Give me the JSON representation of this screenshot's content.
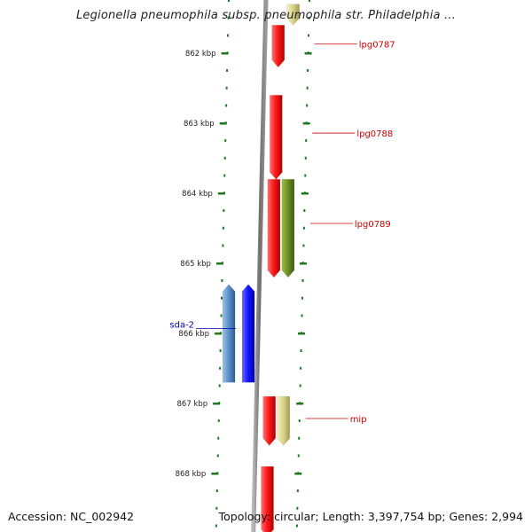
{
  "title": "Legionella pneumophila subsp. pneumophila str. Philadelphia ...",
  "footer": {
    "accession": "Accession: NC_002942",
    "info": "Topology: circular; Length: 3,397,754 bp; Genes: 2,994"
  },
  "colors": {
    "backbone": "#7a7a7a",
    "tick": "#1f7a1f",
    "label_red": "#cc0000",
    "label_blue": "#0000aa",
    "gene_red": "#ff1a1a",
    "gene_olive": "#6b8e23",
    "gene_khaki": "#d8d48a",
    "gene_steelblue": "#5b8fc7",
    "gene_blue": "#1414ff"
  },
  "scale": {
    "unit": "kbp",
    "ticks": [
      {
        "value": 862,
        "label": "862 kbp"
      },
      {
        "value": 863,
        "label": "863 kbp"
      },
      {
        "value": 864,
        "label": "864 kbp"
      },
      {
        "value": 865,
        "label": "865 kbp"
      },
      {
        "value": 866,
        "label": "866 kbp"
      },
      {
        "value": 867,
        "label": "867 kbp"
      },
      {
        "value": 868,
        "label": "868 kbp"
      }
    ]
  },
  "genes": [
    {
      "name": "",
      "strand": "+",
      "start": 861.3,
      "end": 861.6,
      "color": "gene_khaki"
    },
    {
      "name": "lpg0787",
      "strand": "+",
      "start": 861.6,
      "end": 862.2,
      "color": "gene_red"
    },
    {
      "name": "lpg0788",
      "strand": "+",
      "start": 862.6,
      "end": 863.8,
      "color": "gene_red"
    },
    {
      "name": "",
      "strand": "+",
      "start": 863.8,
      "end": 865.2,
      "color": "gene_olive"
    },
    {
      "name": "lpg0789",
      "strand": "+",
      "start": 863.8,
      "end": 865.2,
      "color": "gene_red"
    },
    {
      "name": "sda-2",
      "strand": "-",
      "start": 865.3,
      "end": 866.7,
      "color": "gene_steelblue"
    },
    {
      "name": "",
      "strand": "-",
      "start": 865.3,
      "end": 866.7,
      "color": "gene_blue"
    },
    {
      "name": "",
      "strand": "+",
      "start": 866.9,
      "end": 867.6,
      "color": "gene_khaki"
    },
    {
      "name": "mip",
      "strand": "+",
      "start": 866.9,
      "end": 867.6,
      "color": "gene_red"
    },
    {
      "name": "",
      "strand": "+",
      "start": 867.9,
      "end": 868.9,
      "color": "gene_red"
    }
  ]
}
